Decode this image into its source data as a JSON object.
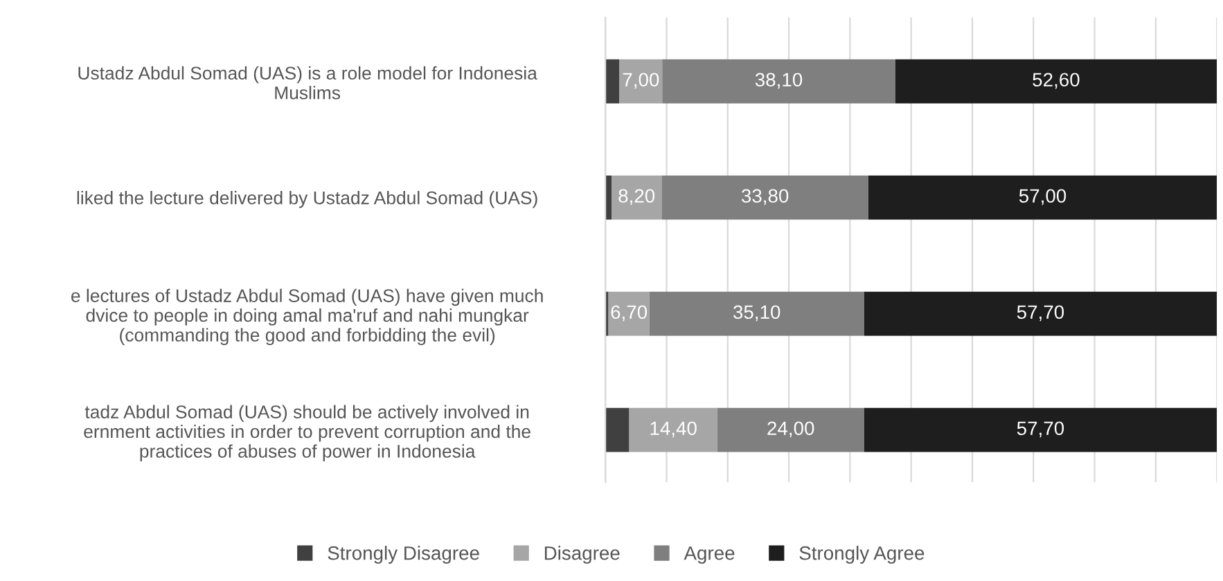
{
  "chart_data": {
    "type": "bar",
    "orientation": "horizontal",
    "stacked": true,
    "categories": [
      "Ustadz Abdul Somad (UAS) is a role model for Indonesia\nMuslims",
      "liked the lecture delivered by Ustadz Abdul Somad (UAS)",
      "e lectures of Ustadz Abdul Somad (UAS) have given much\ndvice to people in doing amal ma'ruf and nahi mungkar\n(commanding the good and forbidding the evil)",
      "tadz Abdul Somad (UAS) should be actively involved in\nernment activities in order to prevent corruption and the\npractices of abuses of power in Indonesia"
    ],
    "series": [
      {
        "name": "Strongly Disagree",
        "color": "#404040",
        "values": [
          2.3,
          1.0,
          0.5,
          3.9
        ],
        "value_labels": [
          null,
          null,
          null,
          null
        ]
      },
      {
        "name": "Disagree",
        "color": "#a6a6a6",
        "values": [
          7.0,
          8.2,
          6.7,
          14.4
        ],
        "value_labels": [
          "7,00",
          "8,20",
          "6,70",
          "14,40"
        ]
      },
      {
        "name": "Agree",
        "color": "#7f7f7f",
        "values": [
          38.1,
          33.8,
          35.1,
          24.0
        ],
        "value_labels": [
          "38,10",
          "33,80",
          "35,10",
          "24,00"
        ]
      },
      {
        "name": "Strongly Agree",
        "color": "#1e1e1e",
        "values": [
          52.6,
          57.0,
          57.7,
          57.7
        ],
        "value_labels": [
          "52,60",
          "57,00",
          "57,70",
          "57,70"
        ]
      }
    ],
    "xlim": [
      0,
      100
    ],
    "xticks": [
      {
        "value": 0,
        "label": null
      },
      {
        "value": 10,
        "label": null
      },
      {
        "value": 20,
        "label": null
      },
      {
        "value": 30,
        "label": null
      },
      {
        "value": 40,
        "label": null
      },
      {
        "value": 50,
        "label": null
      },
      {
        "value": 60,
        "label": null
      },
      {
        "value": 70,
        "label": null
      },
      {
        "value": 80,
        "label": null
      },
      {
        "value": 90,
        "label": null
      },
      {
        "value": 100,
        "label": null
      }
    ],
    "tick_labels": "y",
    "grid": "x",
    "legend": "bottom"
  }
}
